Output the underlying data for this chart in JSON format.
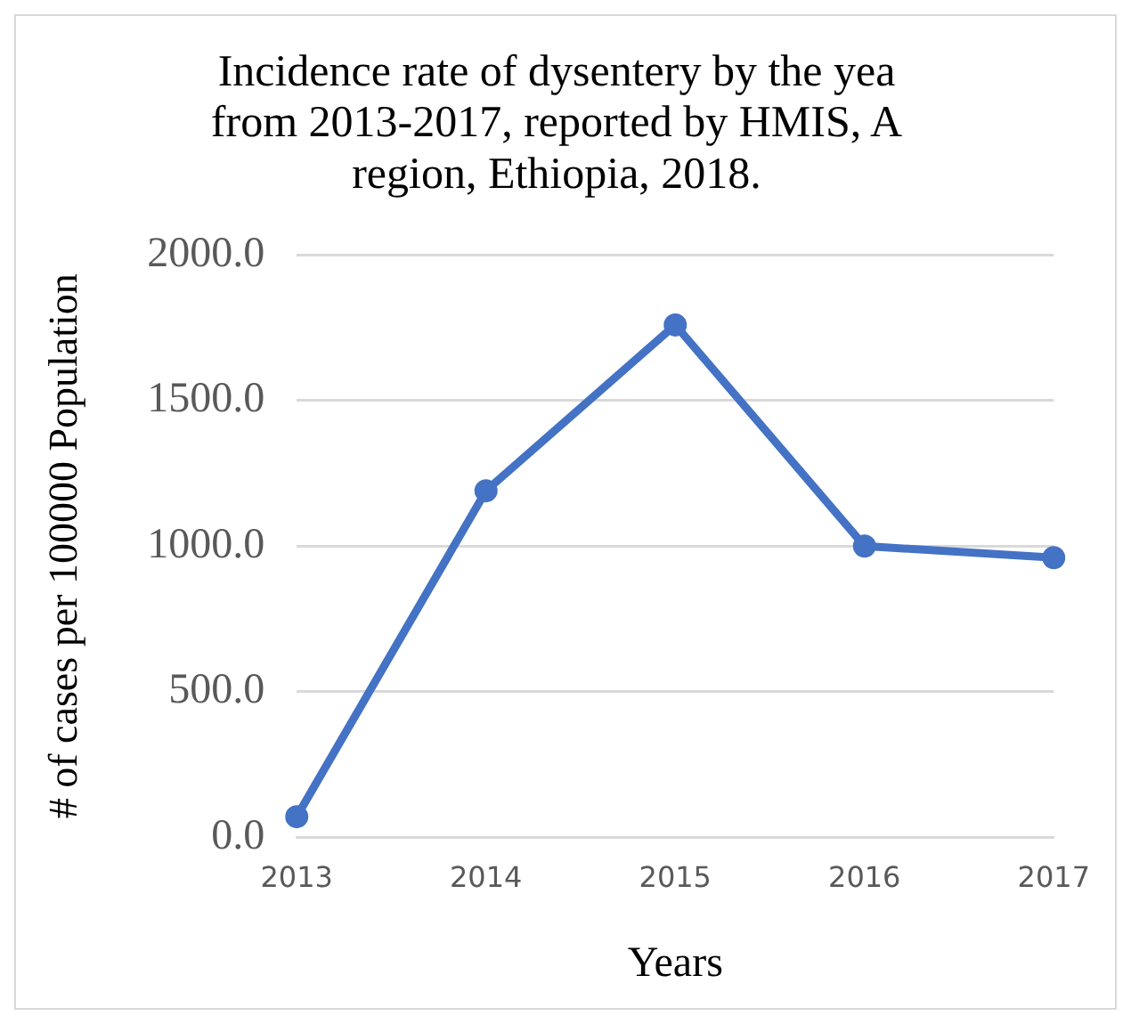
{
  "chart_data": {
    "type": "line",
    "title": [
      "Incidence rate of dysentery by the yea",
      "from 2013-2017, reported by HMIS, A",
      "region, Ethiopia, 2018."
    ],
    "xlabel": "Years",
    "ylabel": "# of cases per 100000 Population",
    "categories": [
      "2013",
      "2014",
      "2015",
      "2016",
      "2017"
    ],
    "series": [
      {
        "color": "#4472c4",
        "values": [
          70,
          1190,
          1760,
          1000,
          960
        ]
      }
    ],
    "ylim": [
      0,
      2000
    ],
    "yticks": [
      {
        "value": 0,
        "label": "0.0"
      },
      {
        "value": 500,
        "label": "500.0"
      },
      {
        "value": 1000,
        "label": "1000.0"
      },
      {
        "value": 1500,
        "label": "1500.0"
      },
      {
        "value": 2000,
        "label": "2000.0"
      }
    ],
    "grid": "y",
    "legend": false,
    "marker": "circle",
    "line_style": "solid"
  }
}
